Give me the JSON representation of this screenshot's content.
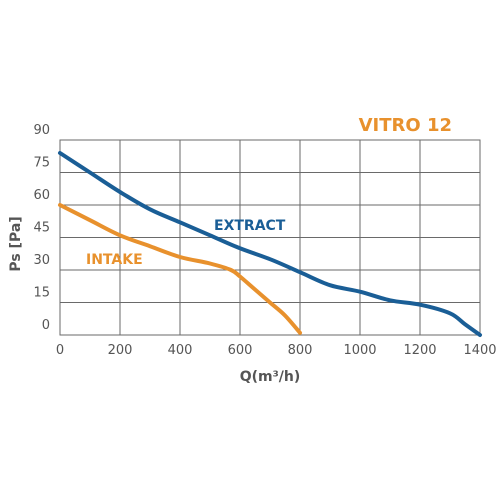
{
  "chart_data": {
    "type": "line",
    "title": "VITRO 12",
    "xlabel": "Q(m³/h)",
    "ylabel": "Ps [Pa]",
    "xlim": [
      0,
      1400
    ],
    "ylim": [
      0,
      90
    ],
    "x_ticks": [
      "0",
      "200",
      "400",
      "600",
      "800",
      "1000",
      "1200",
      "1400"
    ],
    "y_ticks": [
      "0",
      "15",
      "30",
      "45",
      "60",
      "75",
      "90"
    ],
    "grid": true,
    "colors": {
      "title": "#E8912D",
      "extract": "#1A5E96",
      "intake": "#E8912D",
      "grid": "#6A6A6A"
    },
    "series": [
      {
        "name": "EXTRACT",
        "color": "#1A5E96",
        "x": [
          0,
          100,
          200,
          300,
          400,
          500,
          600,
          700,
          800,
          900,
          1000,
          1100,
          1200,
          1300,
          1350,
          1400
        ],
        "y": [
          84,
          75,
          66,
          58,
          52,
          46,
          40,
          35,
          29,
          23,
          20,
          16,
          14,
          10,
          5,
          0
        ]
      },
      {
        "name": "INTAKE",
        "color": "#E8912D",
        "x": [
          0,
          100,
          200,
          300,
          400,
          500,
          570,
          600,
          650,
          700,
          750,
          800
        ],
        "y": [
          60,
          53,
          46,
          41,
          36,
          33,
          30,
          27,
          21,
          15,
          9,
          1
        ]
      }
    ]
  }
}
